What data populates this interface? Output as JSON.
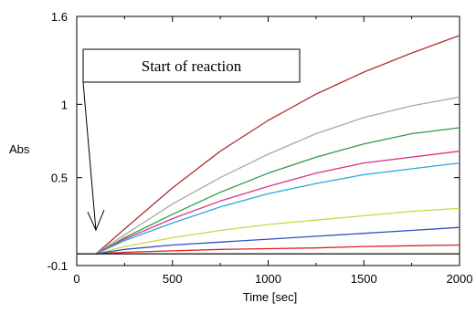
{
  "chart_data": {
    "type": "line",
    "title": "",
    "xlabel": "Time [sec]",
    "ylabel": "Abs",
    "xlim": [
      0,
      2000
    ],
    "ylim": [
      -0.1,
      1.6
    ],
    "x_ticks": [
      0,
      500,
      1000,
      1500,
      2000
    ],
    "x_tick_labels": [
      "0",
      "500",
      "1000",
      "1500",
      "2000"
    ],
    "y_ticks": [
      -0.1,
      0.5,
      1,
      1.6
    ],
    "y_tick_labels": [
      "-0.1",
      "0.5",
      "1",
      "1.6"
    ],
    "grid": false,
    "legend": "none",
    "annotation": {
      "text": "Start of reaction",
      "points_to": [
        100,
        -0.02
      ]
    },
    "x": [
      0,
      100,
      250,
      500,
      750,
      1000,
      1250,
      1500,
      1750,
      2000
    ],
    "series": [
      {
        "color": "#b03030",
        "values": [
          -0.02,
          -0.02,
          0.15,
          0.43,
          0.68,
          0.89,
          1.07,
          1.22,
          1.35,
          1.47
        ]
      },
      {
        "color": "#a8a8a8",
        "values": [
          -0.02,
          -0.02,
          0.11,
          0.32,
          0.5,
          0.66,
          0.8,
          0.91,
          0.99,
          1.05
        ]
      },
      {
        "color": "#2e9a4a",
        "values": [
          -0.02,
          -0.02,
          0.09,
          0.25,
          0.4,
          0.53,
          0.64,
          0.73,
          0.8,
          0.84
        ]
      },
      {
        "color": "#e0308a",
        "values": [
          -0.02,
          -0.02,
          0.08,
          0.22,
          0.34,
          0.44,
          0.53,
          0.6,
          0.64,
          0.68
        ]
      },
      {
        "color": "#2aa8d8",
        "values": [
          -0.02,
          -0.02,
          0.07,
          0.19,
          0.3,
          0.39,
          0.46,
          0.52,
          0.56,
          0.6
        ]
      },
      {
        "color": "#c8d840",
        "values": [
          -0.02,
          -0.02,
          0.03,
          0.09,
          0.14,
          0.18,
          0.21,
          0.24,
          0.27,
          0.29
        ]
      },
      {
        "color": "#3050c0",
        "values": [
          -0.02,
          -0.02,
          0.01,
          0.04,
          0.06,
          0.08,
          0.1,
          0.12,
          0.14,
          0.16
        ]
      },
      {
        "color": "#e02020",
        "values": [
          -0.02,
          -0.02,
          -0.01,
          0.0,
          0.01,
          0.015,
          0.02,
          0.03,
          0.035,
          0.04
        ]
      },
      {
        "color": "#202020",
        "values": [
          -0.02,
          -0.02,
          -0.02,
          -0.02,
          -0.02,
          -0.02,
          -0.02,
          -0.02,
          -0.02,
          -0.02
        ]
      }
    ]
  }
}
